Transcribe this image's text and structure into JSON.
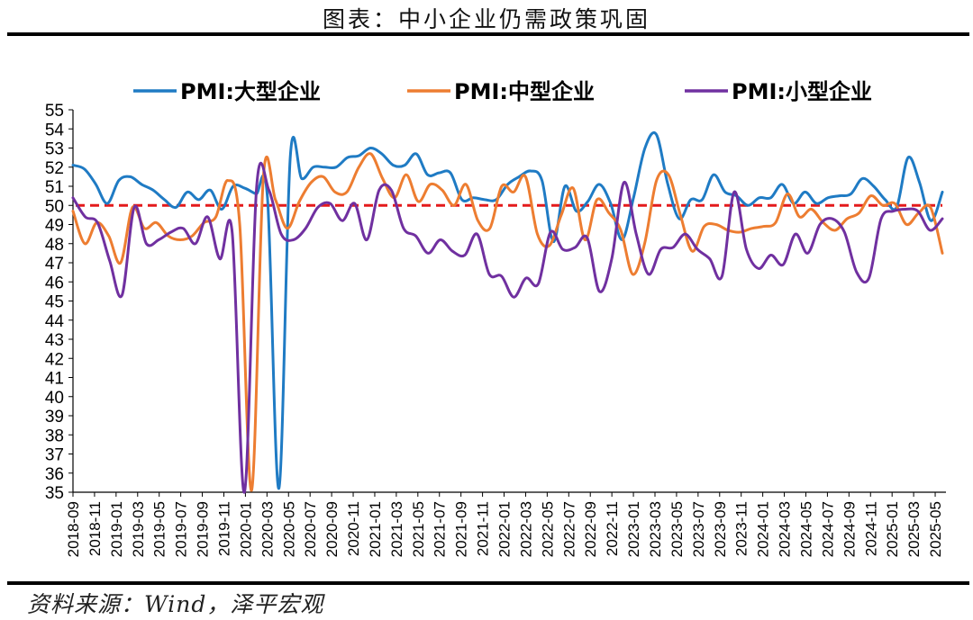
{
  "page": {
    "title": "图表：中小企业仍需政策巩固",
    "source": "资料来源：Wind，泽平宏观"
  },
  "colors": {
    "large": "#1f7bc4",
    "medium": "#ed7d31",
    "small": "#7030a0",
    "reference": "#e41a1c"
  },
  "chart_data": {
    "type": "line",
    "ylim": [
      35,
      55
    ],
    "y_ticks": [
      35,
      36,
      37,
      38,
      39,
      40,
      41,
      42,
      43,
      44,
      45,
      46,
      47,
      48,
      49,
      50,
      51,
      52,
      53,
      54,
      55
    ],
    "x_tick_labels": [
      "2018-09",
      "2018-11",
      "2019-01",
      "2019-03",
      "2019-05",
      "2019-07",
      "2019-09",
      "2019-11",
      "2020-01",
      "2020-03",
      "2020-05",
      "2020-07",
      "2020-09",
      "2020-11",
      "2021-01",
      "2021-03",
      "2021-05",
      "2021-07",
      "2021-09",
      "2021-11",
      "2022-01",
      "2022-03",
      "2022-05",
      "2022-07",
      "2022-09",
      "2022-11",
      "2023-01",
      "2023-03",
      "2023-05",
      "2023-07",
      "2023-09",
      "2023-11",
      "2024-01",
      "2024-03",
      "2024-05",
      "2024-07",
      "2024-09",
      "2024-11",
      "2025-01",
      "2025-03",
      "2025-05"
    ],
    "legend_position": "top",
    "reference_line": {
      "value": 50,
      "style": "dashed"
    },
    "series": [
      {
        "name": "PMI:大型企业",
        "color_key": "large",
        "values": [
          52.1,
          51.9,
          51.1,
          50.1,
          51.3,
          51.5,
          51.1,
          50.8,
          50.3,
          49.9,
          50.7,
          50.3,
          50.8,
          49.8,
          51.0,
          50.9,
          50.6,
          50.4,
          35.2,
          52.6,
          51.4,
          52.0,
          52.0,
          52.0,
          52.5,
          52.6,
          53.0,
          52.7,
          52.1,
          52.1,
          52.7,
          51.6,
          51.7,
          51.7,
          50.3,
          50.4,
          50.3,
          50.3,
          51.1,
          51.5,
          51.8,
          51.3,
          48.1,
          51.0,
          49.7,
          50.2,
          51.1,
          50.1,
          48.2,
          50.4,
          53.0,
          53.7,
          51.1,
          49.3,
          50.3,
          50.3,
          51.6,
          50.7,
          50.5,
          50.0,
          50.4,
          50.4,
          51.1,
          50.1,
          50.7,
          50.1,
          50.4,
          50.5,
          50.6,
          51.4,
          51.0,
          50.3,
          49.9,
          52.5,
          51.2,
          49.2,
          50.7
        ]
      },
      {
        "name": "PMI:中型企业",
        "color_key": "medium",
        "values": [
          49.7,
          48.0,
          49.1,
          48.4,
          47.0,
          49.9,
          48.8,
          49.1,
          48.4,
          48.2,
          48.4,
          49.1,
          49.4,
          51.3,
          49.0,
          35.1,
          51.6,
          50.3,
          48.8,
          50.2,
          51.2,
          51.5,
          50.7,
          50.7,
          52.0,
          52.7,
          51.4,
          50.4,
          51.6,
          50.2,
          51.1,
          50.8,
          50.0,
          51.1,
          49.2,
          48.8,
          51.0,
          50.7,
          51.5,
          48.5,
          47.9,
          49.5,
          50.9,
          48.2,
          50.3,
          49.6,
          48.7,
          46.4,
          48.0,
          51.3,
          51.6,
          49.5,
          47.6,
          48.9,
          49.0,
          48.7,
          48.6,
          48.8,
          48.9,
          49.1,
          50.6,
          49.4,
          49.8,
          49.1,
          48.7,
          49.3,
          49.6,
          50.5,
          50.0,
          50.1,
          49.0,
          49.6,
          49.9,
          47.5
        ]
      },
      {
        "name": "PMI:小型企业",
        "color_key": "small",
        "values": [
          50.4,
          49.4,
          49.1,
          47.1,
          45.3,
          49.9,
          48.0,
          48.2,
          48.6,
          48.8,
          48.0,
          49.4,
          47.2,
          48.6,
          35.0,
          51.0,
          50.8,
          48.5,
          48.2,
          48.8,
          49.9,
          50.1,
          49.2,
          50.1,
          48.2,
          50.8,
          50.8,
          48.8,
          48.4,
          47.5,
          48.2,
          47.6,
          47.4,
          48.5,
          46.4,
          46.3,
          45.2,
          46.2,
          45.9,
          48.6,
          47.7,
          47.8,
          48.3,
          45.5,
          47.2,
          51.2,
          48.5,
          46.4,
          47.7,
          47.8,
          48.5,
          47.7,
          47.2,
          46.3,
          50.7,
          47.7,
          46.7,
          47.4,
          46.9,
          48.5,
          47.5,
          49.0,
          49.3,
          48.6,
          46.5,
          46.2,
          49.3,
          49.7,
          49.8,
          49.7,
          48.7,
          49.3
        ]
      }
    ]
  }
}
